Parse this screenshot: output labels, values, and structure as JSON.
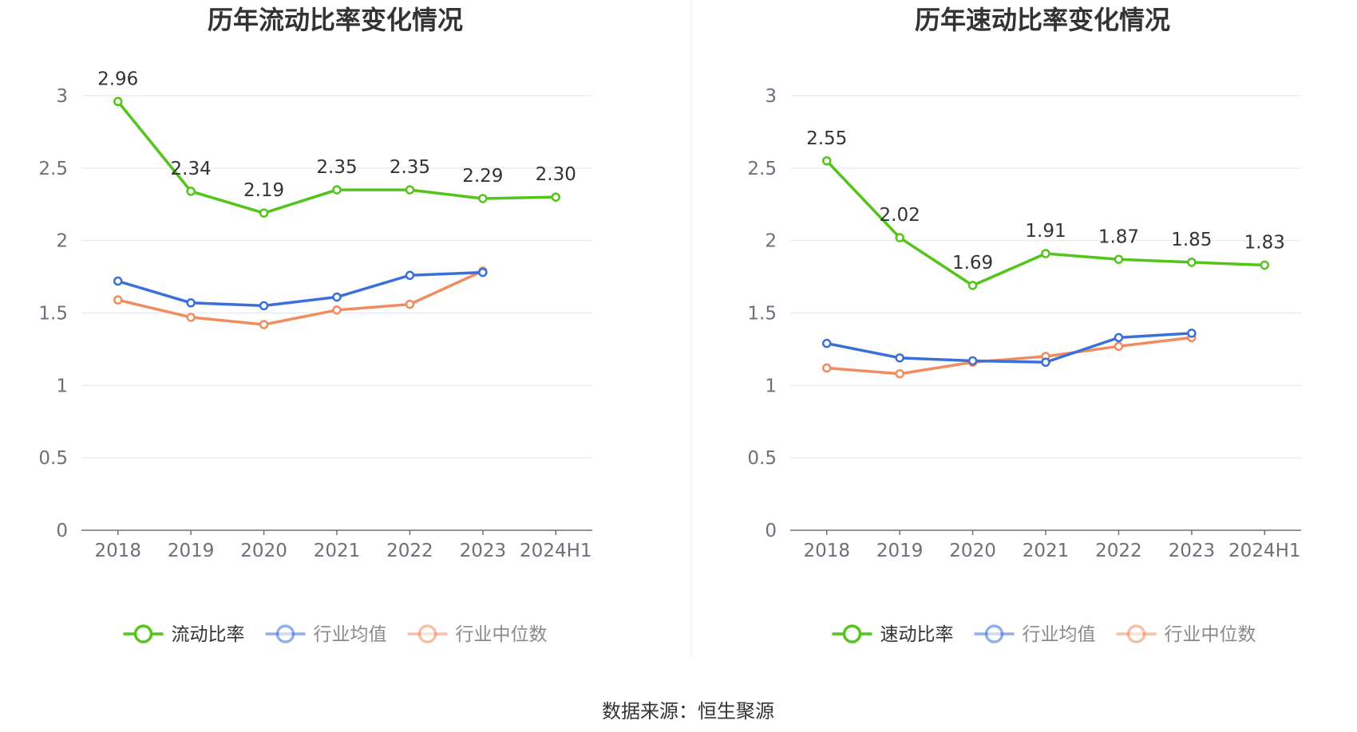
{
  "source": "数据来源：恒生聚源",
  "colors": {
    "main": "#52c41a",
    "avg": "#3b6fd9",
    "median": "#f08c5e"
  },
  "charts": [
    {
      "id": "current-ratio",
      "title": "历年流动比率变化情况",
      "legend": [
        "流动比率",
        "行业均值",
        "行业中位数"
      ],
      "chart_data": {
        "type": "line",
        "title": "历年流动比率变化情况",
        "categories": [
          "2018",
          "2019",
          "2020",
          "2021",
          "2022",
          "2023",
          "2024H1"
        ],
        "ylim": [
          0,
          3
        ],
        "yticks": [
          "0",
          "0.5",
          "1",
          "1.5",
          "2",
          "2.5",
          "3"
        ],
        "grid": true,
        "legend_position": "bottom",
        "series": [
          {
            "name": "流动比率",
            "values": [
              2.96,
              2.34,
              2.19,
              2.35,
              2.35,
              2.29,
              2.3
            ],
            "labels": [
              "2.96",
              "2.34",
              "2.19",
              "2.35",
              "2.35",
              "2.29",
              "2.30"
            ]
          },
          {
            "name": "行业均值",
            "values": [
              1.72,
              1.57,
              1.55,
              1.61,
              1.76,
              1.78,
              null
            ]
          },
          {
            "name": "行业中位数",
            "values": [
              1.59,
              1.47,
              1.42,
              1.52,
              1.56,
              1.79,
              null
            ]
          }
        ]
      }
    },
    {
      "id": "quick-ratio",
      "title": "历年速动比率变化情况",
      "legend": [
        "速动比率",
        "行业均值",
        "行业中位数"
      ],
      "chart_data": {
        "type": "line",
        "title": "历年速动比率变化情况",
        "categories": [
          "2018",
          "2019",
          "2020",
          "2021",
          "2022",
          "2023",
          "2024H1"
        ],
        "ylim": [
          0,
          3
        ],
        "yticks": [
          "0",
          "0.5",
          "1",
          "1.5",
          "2",
          "2.5",
          "3"
        ],
        "grid": true,
        "legend_position": "bottom",
        "series": [
          {
            "name": "速动比率",
            "values": [
              2.55,
              2.02,
              1.69,
              1.91,
              1.87,
              1.85,
              1.83
            ],
            "labels": [
              "2.55",
              "2.02",
              "1.69",
              "1.91",
              "1.87",
              "1.85",
              "1.83"
            ]
          },
          {
            "name": "行业均值",
            "values": [
              1.29,
              1.19,
              1.17,
              1.16,
              1.33,
              1.36,
              null
            ]
          },
          {
            "name": "行业中位数",
            "values": [
              1.12,
              1.08,
              1.16,
              1.2,
              1.27,
              1.33,
              null
            ]
          }
        ]
      }
    }
  ]
}
